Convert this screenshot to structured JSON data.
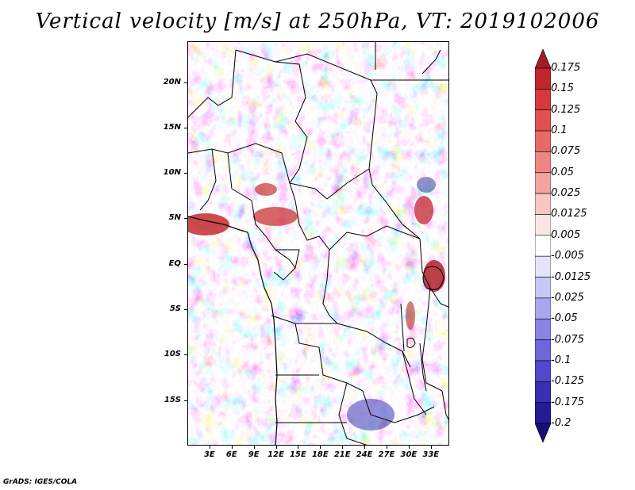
{
  "title": "Vertical velocity [m/s] at 250hPa, VT: 2019102006",
  "credit": "GrADS: IGES/COLA",
  "map": {
    "lat_labels": [
      "20N",
      "15N",
      "10N",
      "5N",
      "EQ",
      "5S",
      "10S",
      "15S"
    ],
    "lon_labels": [
      "3E",
      "6E",
      "9E",
      "12E",
      "15E",
      "18E",
      "21E",
      "24E",
      "27E",
      "30E",
      "33E"
    ],
    "lat_values": [
      20,
      15,
      10,
      5,
      0,
      -5,
      -10,
      -15
    ],
    "lon_values": [
      3,
      6,
      9,
      12,
      15,
      18,
      21,
      24,
      27,
      30,
      33
    ],
    "lat_range": [
      -20,
      24.5
    ],
    "lon_range": [
      0,
      35.5
    ]
  },
  "colorbar": {
    "levels": [
      "0.175",
      "0.15",
      "0.125",
      "0.1",
      "0.075",
      "0.05",
      "0.025",
      "0.0125",
      "0.005",
      "-0.005",
      "-0.0125",
      "-0.025",
      "-0.05",
      "-0.075",
      "-0.1",
      "-0.125",
      "-0.175",
      "-0.2"
    ],
    "colors": [
      "#a51c24",
      "#c0262d",
      "#d43a3d",
      "#e0504f",
      "#e86a66",
      "#ee8683",
      "#f3a3a0",
      "#f8c6c3",
      "#fce6e4",
      "#ffffff",
      "#e4e3fb",
      "#c9c7f6",
      "#a9a6ef",
      "#8985e6",
      "#6c67db",
      "#4e48cc",
      "#3630b5",
      "#221c96",
      "#150f78"
    ]
  }
}
